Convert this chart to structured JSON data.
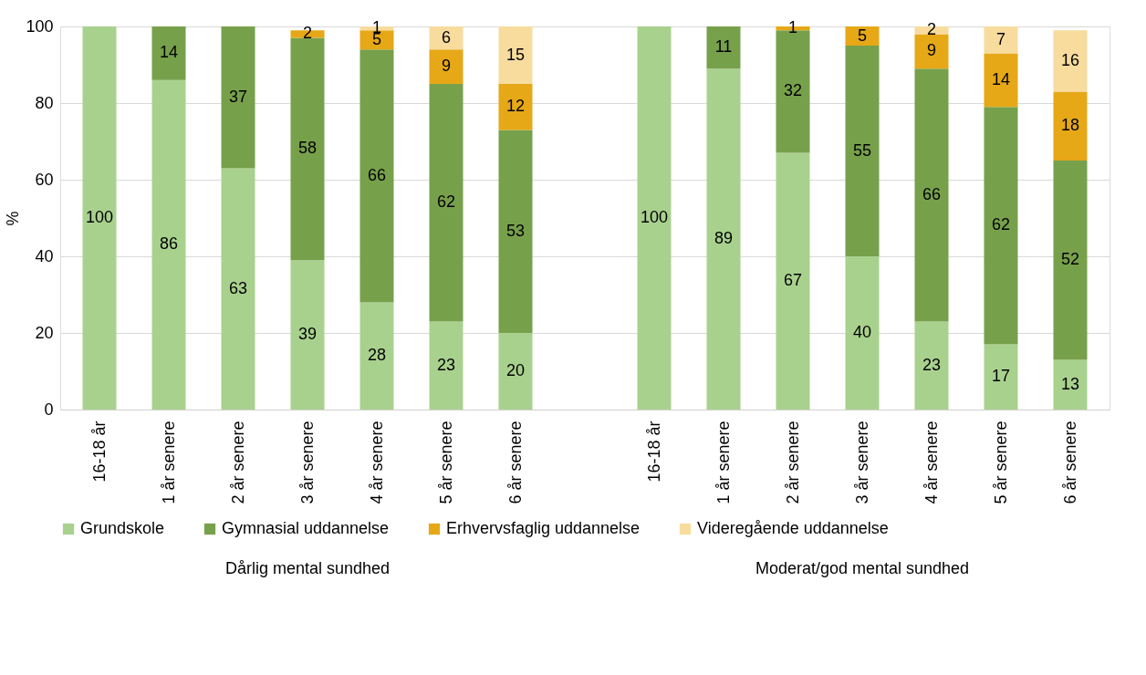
{
  "chart_data": {
    "type": "bar",
    "stacked": true,
    "ylabel": "%",
    "ylim": [
      0,
      100
    ],
    "yticks": [
      0,
      20,
      40,
      60,
      80,
      100
    ],
    "grid": "y",
    "legend": "bottom",
    "categories": [
      "16-18 år",
      "1 år senere",
      "2 år senere",
      "3 år senere",
      "4 år senere",
      "5 år senere",
      "6 år senere",
      null,
      "16-18 år",
      "1 år senere",
      "2 år senere",
      "3 år senere",
      "4 år senere",
      "5 år senere",
      "6 år senere"
    ],
    "annotations": [
      "Dårlig mental sundhed",
      "Moderat/god mental sundhed"
    ],
    "series": [
      {
        "name": "Grundskole",
        "color": "#a9d18e",
        "values": [
          100,
          86,
          63,
          39,
          28,
          23,
          20,
          null,
          100,
          89,
          67,
          40,
          23,
          17,
          13
        ],
        "value_labels": [
          "100",
          "86",
          "63",
          "39",
          "28",
          "23",
          "20",
          null,
          "100",
          "89",
          "67",
          "40",
          "23",
          "17",
          "13"
        ]
      },
      {
        "name": "Gymnasial uddannelse",
        "color": "#77a04b",
        "values": [
          0,
          14,
          37,
          58,
          66,
          62,
          53,
          null,
          0,
          11,
          32,
          55,
          66,
          62,
          52
        ],
        "value_labels": [
          null,
          "14",
          "37",
          "58",
          "66",
          "62",
          "53",
          null,
          null,
          "11",
          "32",
          "55",
          "66",
          "62",
          "52"
        ]
      },
      {
        "name": "Erhvervsfaglig uddannelse",
        "color": "#e6a817",
        "values": [
          0,
          0,
          0,
          2,
          5,
          9,
          12,
          null,
          0,
          0,
          1,
          5,
          9,
          14,
          18
        ],
        "value_labels": [
          null,
          null,
          null,
          "2",
          "5",
          "9",
          "12",
          null,
          null,
          null,
          "1",
          "5",
          "9",
          "14",
          "18"
        ]
      },
      {
        "name": "Videregående uddannelse",
        "color": "#f7dc9e",
        "values": [
          0,
          0,
          0,
          0,
          1,
          6,
          15,
          null,
          0,
          0,
          0,
          0,
          2,
          7,
          16
        ],
        "value_labels": [
          null,
          null,
          null,
          null,
          "1",
          "6",
          "15",
          null,
          null,
          null,
          null,
          null,
          "2",
          "7",
          "16"
        ]
      }
    ]
  }
}
